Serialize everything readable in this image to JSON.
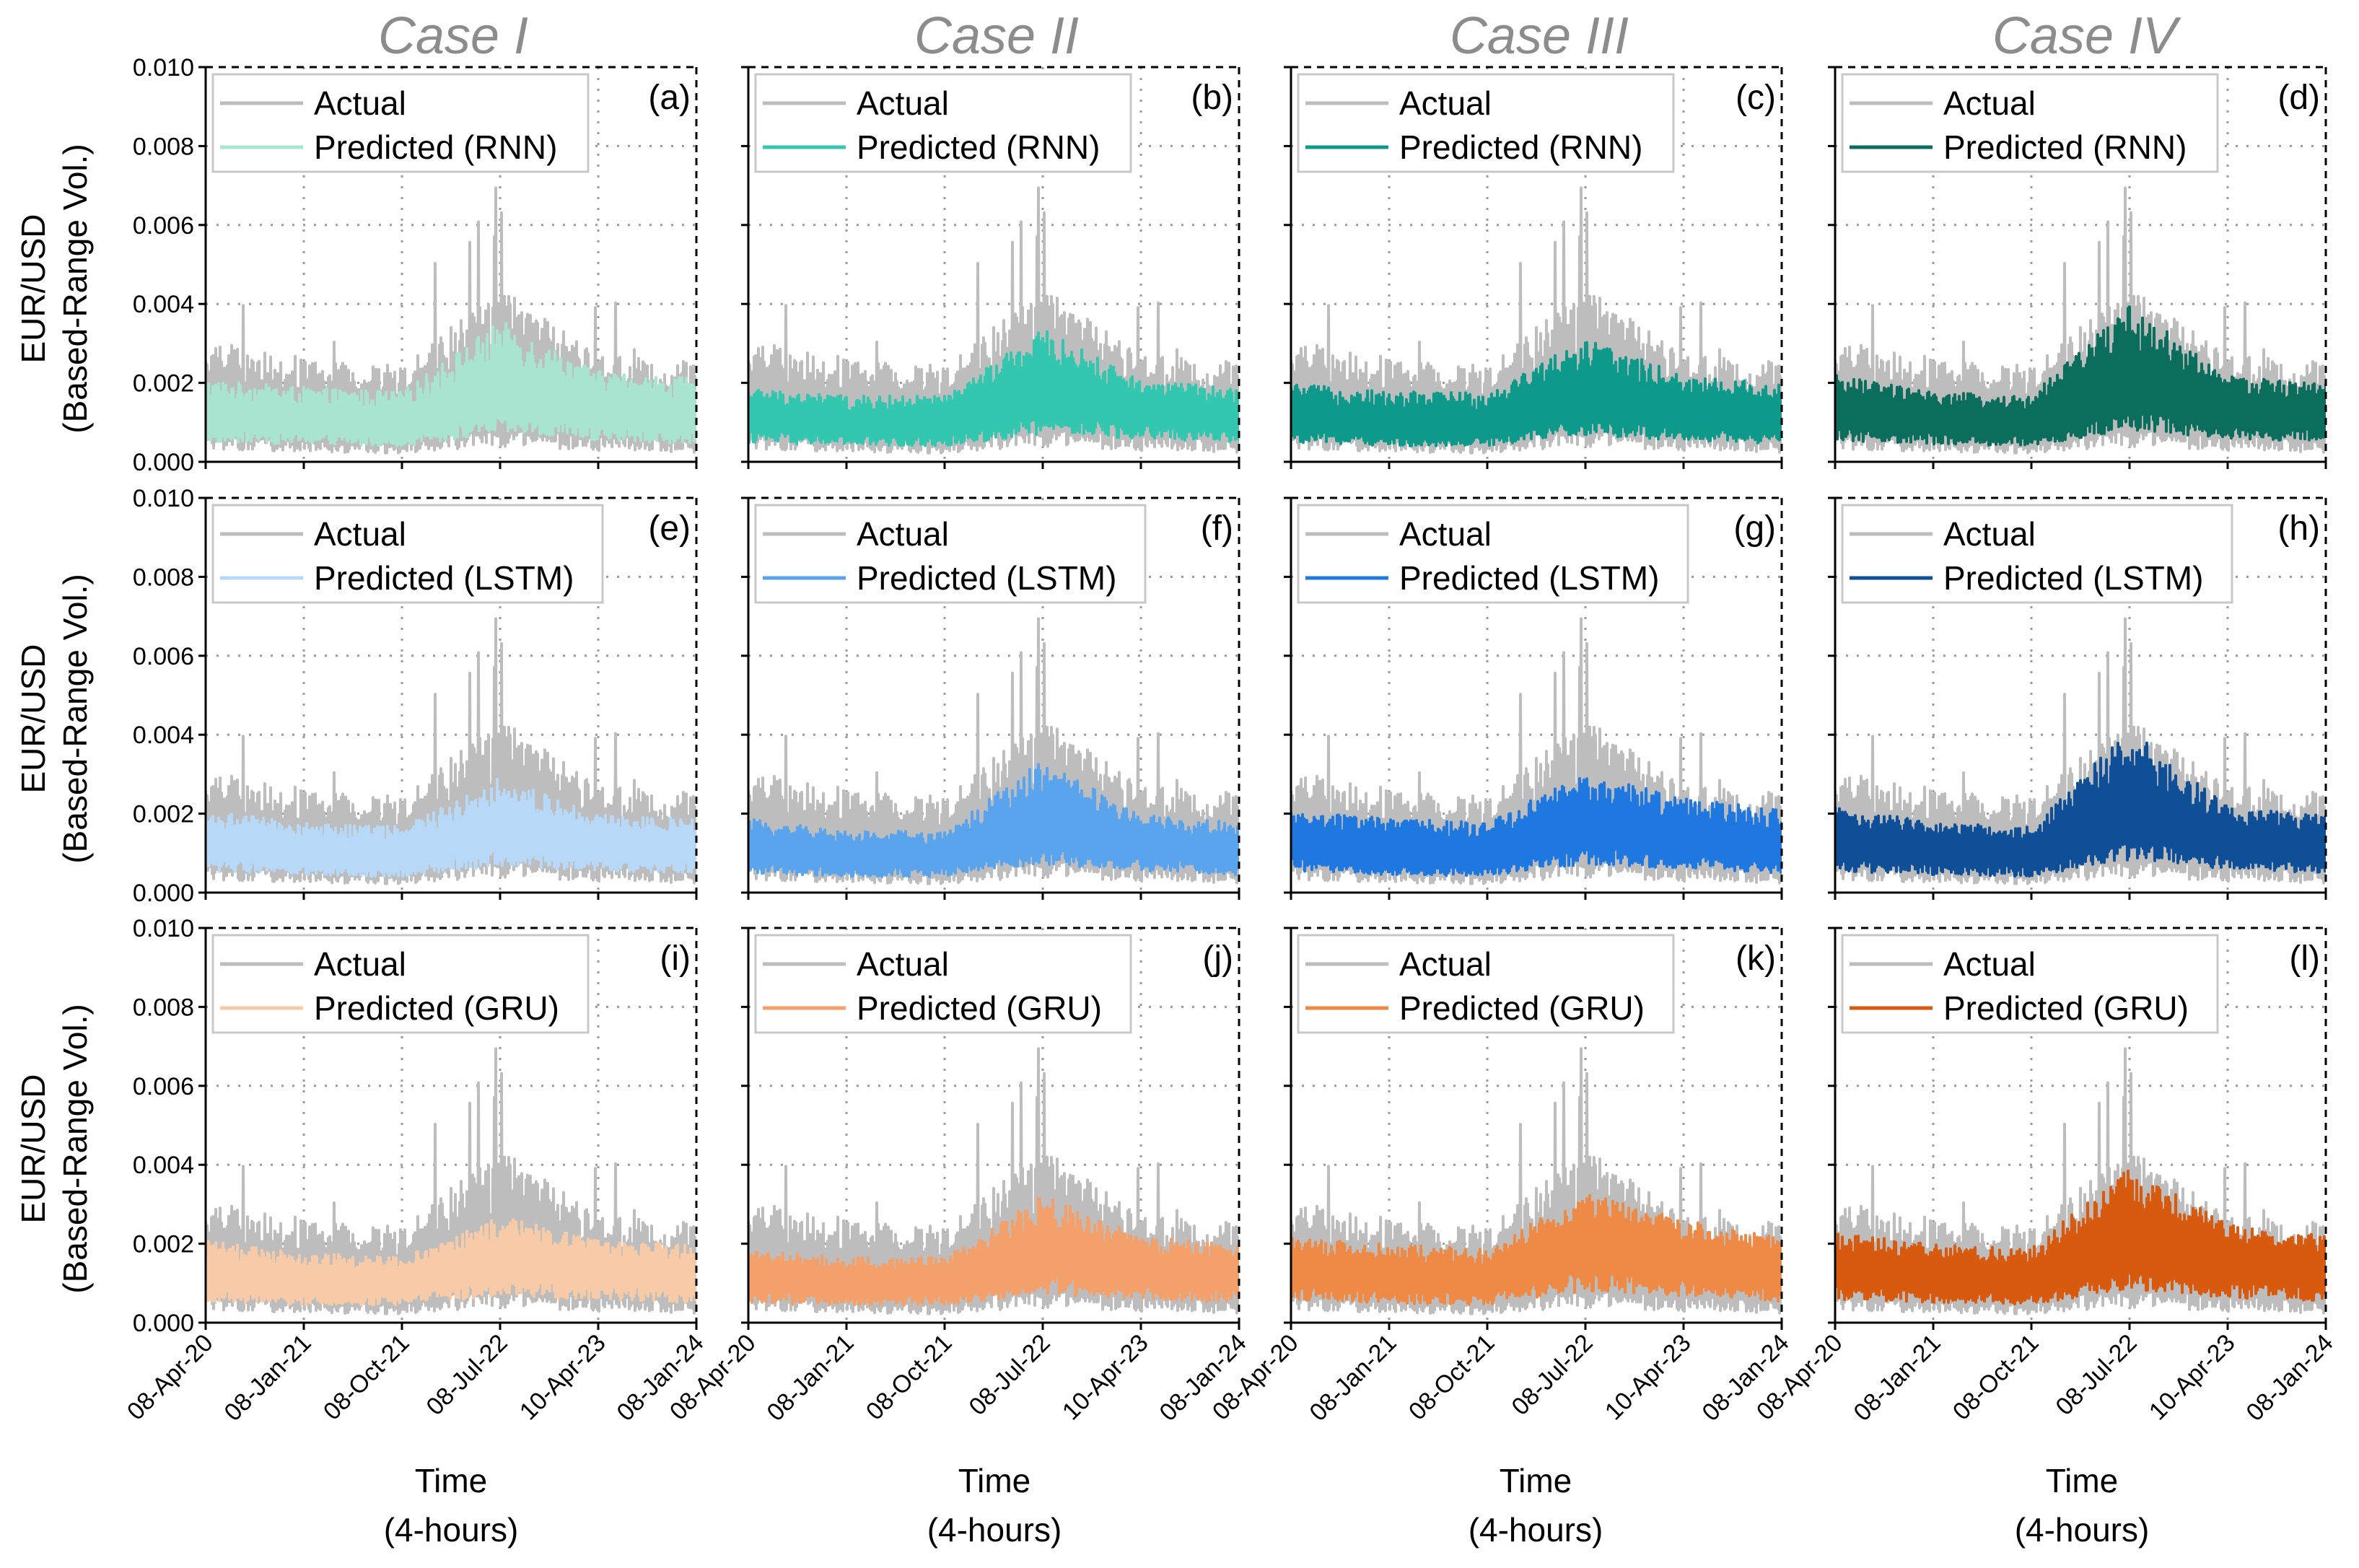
{
  "chart_data": {
    "type": "line",
    "rows": 3,
    "cols": 4,
    "case_titles": [
      "Case I",
      "Case II",
      "Case III",
      "Case IV"
    ],
    "ylabel_line1": "EUR/USD",
    "ylabel_line2": "(Based-Range Vol.)",
    "xlabel_line1": "Time",
    "xlabel_line2": "(4-hours)",
    "ylim": [
      0,
      0.01
    ],
    "yticks": [
      "0.000",
      "0.002",
      "0.004",
      "0.006",
      "0.008",
      "0.010"
    ],
    "ytick_values": [
      0,
      0.002,
      0.004,
      0.006,
      0.008,
      0.01
    ],
    "xticks": [
      "08-Apr-20",
      "08-Jan-21",
      "08-Oct-21",
      "08-Jul-22",
      "10-Apr-23",
      "08-Jan-24"
    ],
    "grid": true,
    "legend_location": "upper-left",
    "actual_label": "Actual",
    "actual_color": "#bdbdbd",
    "actual_series": {
      "name": "Actual",
      "x": [
        "08-Apr-20",
        "08-Jan-21",
        "08-Oct-21",
        "08-Jul-22",
        "10-Apr-23",
        "08-Jan-24"
      ],
      "mean": [
        0.0015,
        0.0012,
        0.0011,
        0.0019,
        0.0014,
        0.0012
      ],
      "upper_envelope": [
        0.0028,
        0.0024,
        0.0022,
        0.004,
        0.0025,
        0.0023
      ],
      "max_spike": 0.0073
    },
    "panels": [
      {
        "letter": "(a)",
        "case": 0,
        "model": "RNN",
        "predicted_label": "Predicted (RNN)",
        "color": "#a8e4cf",
        "mean": [
          0.0011,
          0.001,
          0.0009,
          0.0016,
          0.0012,
          0.001
        ],
        "upper": [
          0.002,
          0.0018,
          0.0017,
          0.0034,
          0.0022,
          0.002
        ]
      },
      {
        "letter": "(b)",
        "case": 1,
        "model": "RNN",
        "predicted_label": "Predicted (RNN)",
        "color": "#33c7b0",
        "mean": [
          0.0011,
          0.0009,
          0.0009,
          0.0016,
          0.0013,
          0.0011
        ],
        "upper": [
          0.0018,
          0.0016,
          0.0016,
          0.0032,
          0.002,
          0.0018
        ]
      },
      {
        "letter": "(c)",
        "case": 2,
        "model": "RNN",
        "predicted_label": "Predicted (RNN)",
        "color": "#0e9a8a",
        "mean": [
          0.0011,
          0.0009,
          0.0009,
          0.0015,
          0.0012,
          0.001
        ],
        "upper": [
          0.0019,
          0.0017,
          0.0017,
          0.003,
          0.0021,
          0.0019
        ]
      },
      {
        "letter": "(d)",
        "case": 3,
        "model": "RNN",
        "predicted_label": "Predicted (RNN)",
        "color": "#0b6d5c",
        "mean": [
          0.0012,
          0.001,
          0.0009,
          0.0018,
          0.0013,
          0.0011
        ],
        "upper": [
          0.0021,
          0.0017,
          0.0016,
          0.0038,
          0.0021,
          0.0019
        ]
      },
      {
        "letter": "(e)",
        "case": 0,
        "model": "LSTM",
        "predicted_label": "Predicted (LSTM)",
        "color": "#b7d8f7",
        "mean": [
          0.0012,
          0.001,
          0.0009,
          0.0015,
          0.0012,
          0.0011
        ],
        "upper": [
          0.002,
          0.0017,
          0.0016,
          0.0028,
          0.0019,
          0.0018
        ]
      },
      {
        "letter": "(f)",
        "case": 1,
        "model": "LSTM",
        "predicted_label": "Predicted (LSTM)",
        "color": "#5aa4ee",
        "mean": [
          0.0011,
          0.0009,
          0.0009,
          0.0016,
          0.0012,
          0.001
        ],
        "upper": [
          0.0018,
          0.0015,
          0.0015,
          0.0032,
          0.0019,
          0.0017
        ]
      },
      {
        "letter": "(g)",
        "case": 2,
        "model": "LSTM",
        "predicted_label": "Predicted (LSTM)",
        "color": "#1f77e0",
        "mean": [
          0.0012,
          0.001,
          0.0009,
          0.0016,
          0.0013,
          0.0011
        ],
        "upper": [
          0.002,
          0.0018,
          0.0017,
          0.0029,
          0.0023,
          0.002
        ]
      },
      {
        "letter": "(h)",
        "case": 3,
        "model": "LSTM",
        "predicted_label": "Predicted (LSTM)",
        "color": "#0f4f98",
        "mean": [
          0.0012,
          0.001,
          0.0009,
          0.0018,
          0.0013,
          0.0011
        ],
        "upper": [
          0.0021,
          0.0017,
          0.0016,
          0.004,
          0.0021,
          0.0019
        ]
      },
      {
        "letter": "(i)",
        "case": 0,
        "model": "GRU",
        "predicted_label": "Predicted (GRU)",
        "color": "#f8cba8",
        "mean": [
          0.0012,
          0.001,
          0.001,
          0.0015,
          0.0013,
          0.0011
        ],
        "upper": [
          0.002,
          0.0017,
          0.0016,
          0.0026,
          0.002,
          0.0019
        ]
      },
      {
        "letter": "(j)",
        "case": 1,
        "model": "GRU",
        "predicted_label": "Predicted (GRU)",
        "color": "#f3a06a",
        "mean": [
          0.0011,
          0.001,
          0.001,
          0.0016,
          0.0013,
          0.0011
        ],
        "upper": [
          0.0018,
          0.0016,
          0.0016,
          0.0031,
          0.0021,
          0.0019
        ]
      },
      {
        "letter": "(k)",
        "case": 2,
        "model": "GRU",
        "predicted_label": "Predicted (GRU)",
        "color": "#ee8a45",
        "mean": [
          0.0013,
          0.0011,
          0.001,
          0.0018,
          0.0015,
          0.0012
        ],
        "upper": [
          0.0021,
          0.0019,
          0.0018,
          0.0032,
          0.0025,
          0.0021
        ]
      },
      {
        "letter": "(l)",
        "case": 3,
        "model": "GRU",
        "predicted_label": "Predicted (GRU)",
        "color": "#d85a0f",
        "mean": [
          0.0013,
          0.0011,
          0.001,
          0.0019,
          0.0014,
          0.0012
        ],
        "upper": [
          0.0022,
          0.0019,
          0.0018,
          0.0038,
          0.0024,
          0.0021
        ]
      }
    ]
  }
}
